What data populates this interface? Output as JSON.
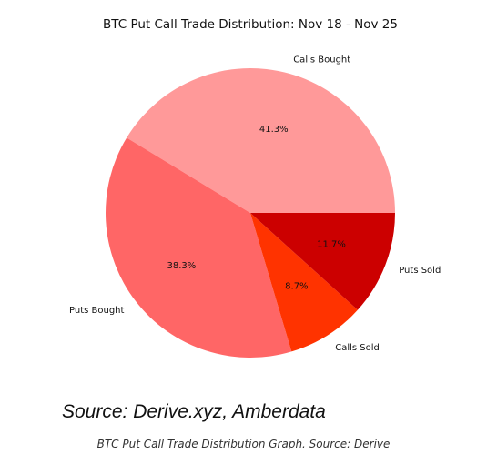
{
  "chart_data": {
    "type": "pie",
    "title": "BTC Put Call Trade Distribution: Nov 18 - Nov 25",
    "labels": [
      "Calls Bought",
      "Puts Bought",
      "Calls Sold",
      "Puts Sold"
    ],
    "values": [
      41.3,
      38.3,
      8.7,
      11.7
    ],
    "value_labels": [
      "41.3%",
      "38.3%",
      "8.7%",
      "11.7%"
    ],
    "colors": [
      "#ff9999",
      "#ff6666",
      "#ff3300",
      "#cc0000"
    ],
    "start_angle_deg": 0,
    "direction": "counterclockwise"
  },
  "source_text": "Source: Derive.xyz, Amberdata",
  "caption": "BTC Put Call Trade Distribution Graph. Source: Derive"
}
